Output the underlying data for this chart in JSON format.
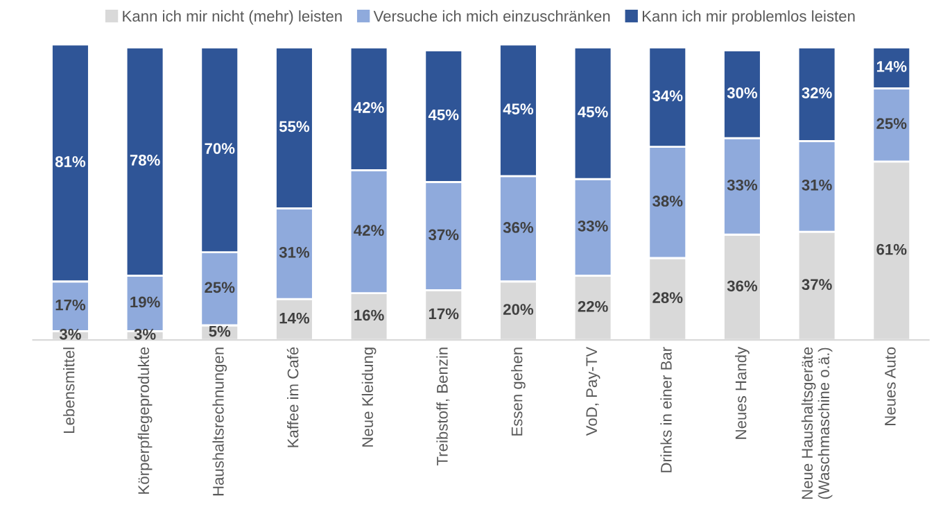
{
  "chart_data": {
    "type": "bar",
    "stacked": true,
    "legend": "top",
    "grid": false,
    "tick_labels": "x",
    "categories": [
      "Lebensmittel",
      "Körperpflegeprodukte",
      "Haushaltsrechnungen",
      "Kaffee im Café",
      "Neue Kleidung",
      "Treibstoff, Benzin",
      "Essen gehen",
      "VoD, Pay-TV",
      "Drinks in einer Bar",
      "Neues Handy",
      "Neue Haushaltsgeräte\n(Waschmaschine o.ä.)",
      "Neues Auto"
    ],
    "series": [
      {
        "name": "Kann ich mir nicht (mehr) leisten",
        "color": "#d9d9d9",
        "values": [
          3,
          3,
          5,
          14,
          16,
          17,
          20,
          22,
          28,
          36,
          37,
          61
        ],
        "value_labels": [
          "3%",
          "3%",
          "5%",
          "14%",
          "16%",
          "17%",
          "20%",
          "22%",
          "28%",
          "36%",
          "37%",
          "61%"
        ]
      },
      {
        "name": "Versuche ich mich einzuschränken",
        "color": "#8faadc",
        "values": [
          17,
          19,
          25,
          31,
          42,
          37,
          36,
          33,
          38,
          33,
          31,
          25
        ],
        "value_labels": [
          "17%",
          "19%",
          "25%",
          "31%",
          "42%",
          "37%",
          "36%",
          "33%",
          "38%",
          "33%",
          "31%",
          "25%"
        ]
      },
      {
        "name": "Kann ich mir problemlos leisten",
        "color": "#2f5597",
        "values": [
          81,
          78,
          70,
          55,
          42,
          45,
          45,
          45,
          34,
          30,
          32,
          14
        ],
        "value_labels": [
          "81%",
          "78%",
          "70%",
          "55%",
          "42%",
          "45%",
          "45%",
          "45%",
          "34%",
          "30%",
          "32%",
          "14%"
        ]
      }
    ]
  }
}
